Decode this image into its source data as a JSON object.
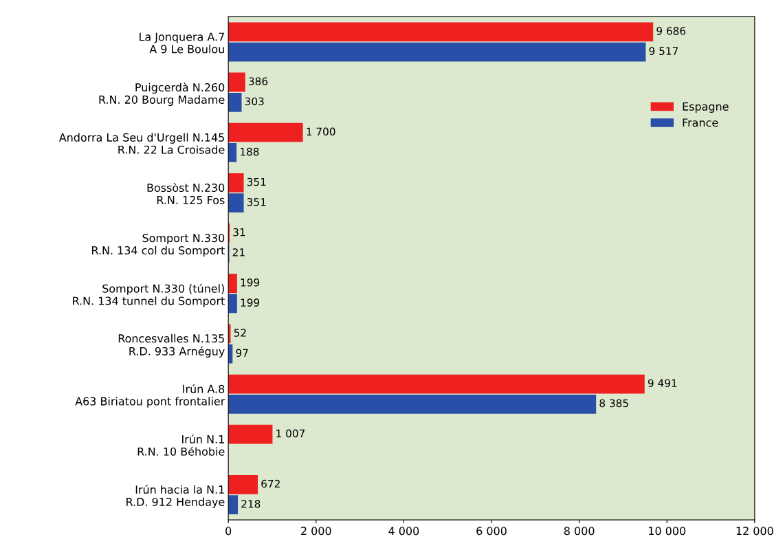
{
  "chart_data": {
    "type": "bar",
    "orientation": "horizontal",
    "categories": [
      "La Jonquera A.7\nA 9 Le Boulou",
      "Puigcerdà N.260\nR.N. 20 Bourg Madame",
      "Andorra La Seu d'Urgell N.145\nR.N. 22 La Croisade",
      "Bossòst N.230\nR.N. 125 Fos",
      "Somport N.330\nR.N. 134 col du Somport",
      "Somport N.330 (túnel)\nR.N. 134 tunnel du Somport",
      "Roncesvalles N.135\nR.D. 933 Arnéguy",
      "Irún A.8\nA63 Biriatou pont frontalier",
      "Irún N.1\nR.N. 10 Béhobie",
      "Irún hacia la N.1\nR.D. 912 Hendaye"
    ],
    "series": [
      {
        "name": "Espagne",
        "color": "#ee2020",
        "values": [
          9686,
          386,
          1700,
          351,
          31,
          199,
          52,
          9491,
          1007,
          672
        ],
        "value_labels": [
          "9 686",
          "386",
          "1 700",
          "351",
          "31",
          "199",
          "52",
          "9 491",
          "1 007",
          "672"
        ]
      },
      {
        "name": "France",
        "color": "#2a4fa8",
        "values": [
          9517,
          303,
          188,
          351,
          21,
          199,
          97,
          8385,
          null,
          218
        ],
        "value_labels": [
          "9 517",
          "303",
          "188",
          "351",
          "21",
          "199",
          "97",
          "8 385",
          null,
          "218"
        ]
      }
    ],
    "xlim": [
      0,
      12000
    ],
    "xticks": [
      0,
      {
        "value": 2000,
        "label": "2 000"
      },
      {
        "value": 4000,
        "label": "4 000"
      },
      {
        "value": 6000,
        "label": "6 000"
      },
      {
        "value": 8000,
        "label": "8 000"
      },
      {
        "value": 10000,
        "label": "10 000"
      },
      {
        "value": 12000,
        "label": "12 000"
      }
    ],
    "grid": false,
    "legend": "top right"
  }
}
